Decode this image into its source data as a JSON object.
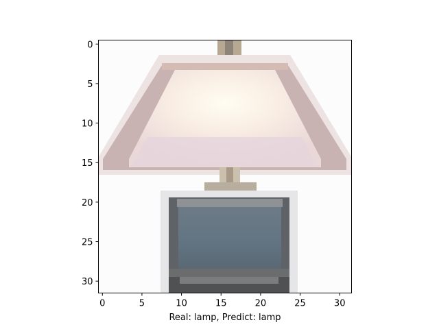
{
  "figure": {
    "caption": "Real: lamp, Predict: lamp",
    "image_grid": {
      "width": 32,
      "height": 32
    },
    "x_ticks": [
      {
        "value": 0,
        "label": "0"
      },
      {
        "value": 5,
        "label": "5"
      },
      {
        "value": 10,
        "label": "10"
      },
      {
        "value": 15,
        "label": "15"
      },
      {
        "value": 20,
        "label": "20"
      },
      {
        "value": 25,
        "label": "25"
      },
      {
        "value": 30,
        "label": "30"
      }
    ],
    "y_ticks": [
      {
        "value": 0,
        "label": "0"
      },
      {
        "value": 5,
        "label": "5"
      },
      {
        "value": 10,
        "label": "10"
      },
      {
        "value": 15,
        "label": "15"
      },
      {
        "value": 20,
        "label": "20"
      },
      {
        "value": 25,
        "label": "25"
      },
      {
        "value": 30,
        "label": "30"
      }
    ],
    "colors": {
      "background": "#ffffff",
      "axis": "#000000",
      "shade_edge": "#c4a9a8",
      "shade_light": "#f7eee8",
      "shade_glow": "#fffbee",
      "shade_lavender": "#e6d8df",
      "base_body": "#617280",
      "base_frame": "#5f6267",
      "base_bottom": "#505152",
      "neck": "#a99a88"
    }
  }
}
